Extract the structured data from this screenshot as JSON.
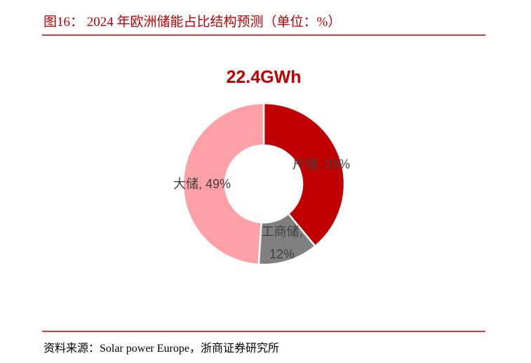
{
  "chart_data": {
    "type": "donut",
    "title": "图16：  2024 年欧洲储能占比结构预测（单位：%）",
    "center_label": "22.4GWh",
    "values": [
      39,
      12,
      49
    ],
    "value_labels": [
      "户储, 39%",
      "工商储, 12%",
      "大储, 49%"
    ],
    "colors": [
      "#c00000",
      "#808080",
      "#ff9fa6"
    ],
    "source": "资料来源：Solar power Europe，浙商证券研究所"
  }
}
